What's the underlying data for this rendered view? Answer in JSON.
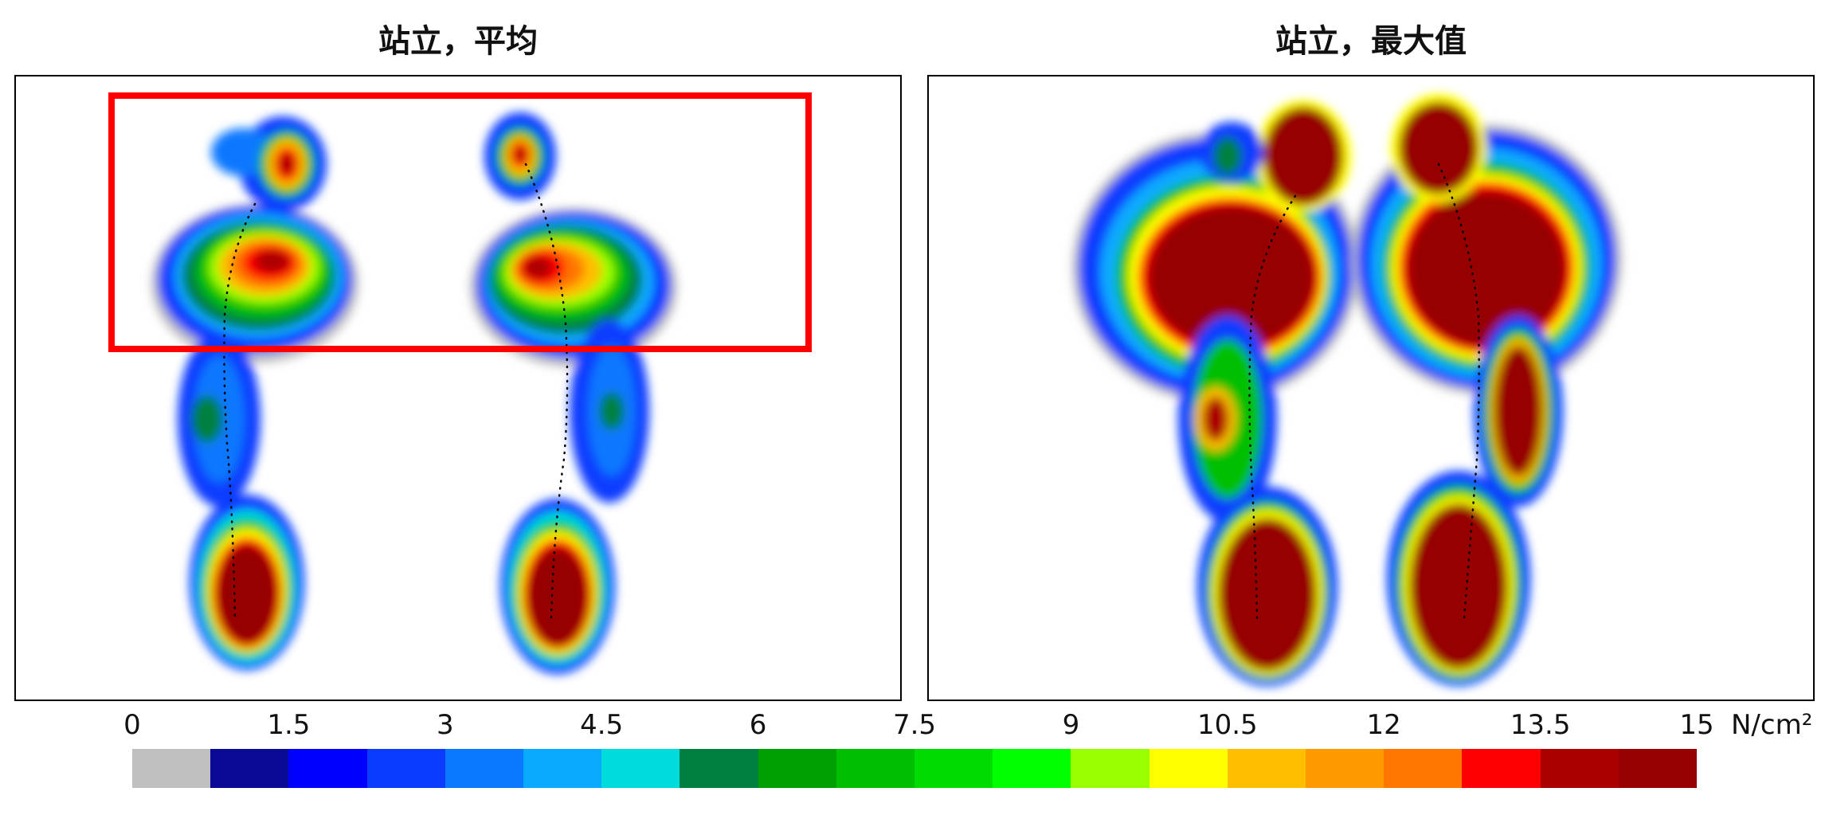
{
  "panels": [
    {
      "title": "站立，平均",
      "highlight": true
    },
    {
      "title": "站立，最大值",
      "highlight": false
    }
  ],
  "colorbar": {
    "tick_labels": [
      "0",
      "1.5",
      "3",
      "4.5",
      "6",
      "7.5",
      "9",
      "10.5",
      "12",
      "13.5",
      "15"
    ],
    "unit": "N/cm²",
    "colors": [
      "#c0c0c0",
      "#0a0a96",
      "#0000ff",
      "#0a3cff",
      "#0a78ff",
      "#0aaaff",
      "#00dcdc",
      "#008040",
      "#00a000",
      "#00bf00",
      "#00dc00",
      "#00ff00",
      "#99ff00",
      "#ffff00",
      "#ffbf00",
      "#ff9900",
      "#ff7700",
      "#ff0000",
      "#aa0000",
      "#960000"
    ]
  }
}
